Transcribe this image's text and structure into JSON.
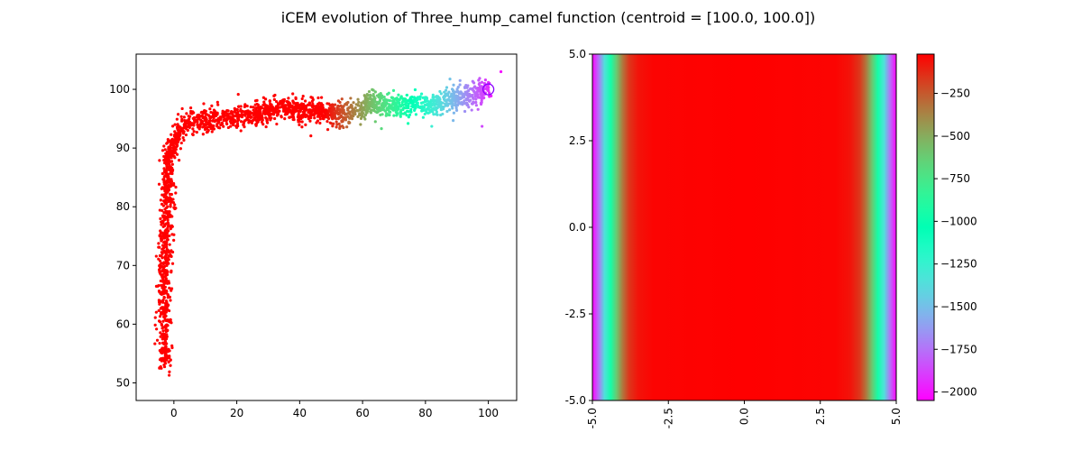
{
  "title": "iCEM evolution of Three_hump_camel function (centroid = [100.0, 100.0])",
  "chart_data": [
    {
      "type": "scatter",
      "xlim": [
        -12,
        109
      ],
      "ylim": [
        47,
        106
      ],
      "xticks": [
        "0",
        "20",
        "40",
        "60",
        "80",
        "100"
      ],
      "xtick_values": [
        0,
        20,
        40,
        60,
        80,
        100
      ],
      "yticks": [
        "50",
        "60",
        "70",
        "80",
        "90",
        "100"
      ],
      "ytick_values": [
        50,
        60,
        70,
        80,
        90,
        100
      ],
      "grid": false,
      "path": [
        {
          "x": -3,
          "y": 53
        },
        {
          "x": -3,
          "y": 70
        },
        {
          "x": -2,
          "y": 85
        },
        {
          "x": -1,
          "y": 90
        },
        {
          "x": 2,
          "y": 93
        },
        {
          "x": 6,
          "y": 94.5
        },
        {
          "x": 15,
          "y": 95
        },
        {
          "x": 25,
          "y": 95.5
        },
        {
          "x": 33,
          "y": 97
        },
        {
          "x": 42,
          "y": 96.5
        },
        {
          "x": 48,
          "y": 96
        },
        {
          "x": 53,
          "y": 95.5
        },
        {
          "x": 58,
          "y": 96.5
        },
        {
          "x": 63,
          "y": 97.5
        },
        {
          "x": 70,
          "y": 97.5
        },
        {
          "x": 78,
          "y": 97.3
        },
        {
          "x": 85,
          "y": 97.6
        },
        {
          "x": 92,
          "y": 98.6
        },
        {
          "x": 100,
          "y": 100
        }
      ],
      "point_count": 2400,
      "colormap": "rainbow",
      "color_rule": "red through x≈48, then orange → yellow → green → cyan → blue → violet toward x=100",
      "centroid_marker": {
        "x": 100,
        "y": 100,
        "shape": "circle-outline"
      }
    },
    {
      "type": "heatmap",
      "xlim": [
        -5,
        5
      ],
      "ylim": [
        -5,
        5
      ],
      "xticks": [
        "-5.0",
        "-2.5",
        "0.0",
        "2.5",
        "5.0"
      ],
      "xtick_values": [
        -5,
        -2.5,
        0,
        2.5,
        5
      ],
      "yticks": [
        "-5.0",
        "-2.5",
        "0.0",
        "2.5",
        "5.0"
      ],
      "ytick_values": [
        -5,
        -2.5,
        0,
        2.5,
        5
      ],
      "xtick_rotation": "vertical",
      "colormap": "rainbow",
      "vmin": -2050,
      "vmax": -20,
      "values_by_x": [
        {
          "x": -5.0,
          "value": -2050
        },
        {
          "x": -4.8,
          "value": -1750
        },
        {
          "x": -4.6,
          "value": -1350
        },
        {
          "x": -4.4,
          "value": -950
        },
        {
          "x": -4.2,
          "value": -600
        },
        {
          "x": -4.0,
          "value": -330
        },
        {
          "x": -3.8,
          "value": -160
        },
        {
          "x": -3.5,
          "value": -70
        },
        {
          "x": -3.0,
          "value": -30
        },
        {
          "x": 0.0,
          "value": -20
        },
        {
          "x": 3.0,
          "value": -30
        },
        {
          "x": 3.5,
          "value": -70
        },
        {
          "x": 3.8,
          "value": -160
        },
        {
          "x": 4.0,
          "value": -330
        },
        {
          "x": 4.2,
          "value": -600
        },
        {
          "x": 4.4,
          "value": -950
        },
        {
          "x": 4.6,
          "value": -1350
        },
        {
          "x": 4.8,
          "value": -1750
        },
        {
          "x": 5.0,
          "value": -2050
        }
      ],
      "colorbar_ticks": [
        "−250",
        "−500",
        "−750",
        "−1000",
        "−1250",
        "−1500",
        "−1750",
        "−2000"
      ],
      "colorbar_tick_values": [
        -250,
        -500,
        -750,
        -1000,
        -1250,
        -1500,
        -1750,
        -2000
      ]
    }
  ]
}
